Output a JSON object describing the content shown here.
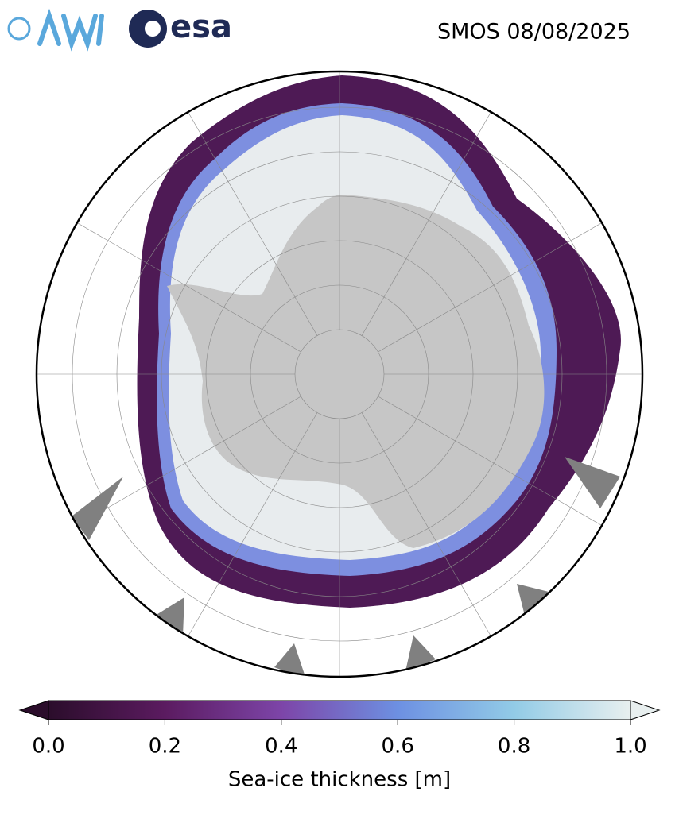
{
  "header": {
    "title": "SMOS 08/08/2025",
    "logos": [
      "esa"
    ]
  },
  "colorbar": {
    "label": "Sea-ice thickness [m]",
    "lim": [
      0,
      1
    ],
    "ticks": [
      {
        "value": 0,
        "label": "0.0"
      },
      0.2,
      0.4,
      0.6,
      0.8,
      {
        "value": 1,
        "label": "1.0"
      }
    ],
    "colors": [
      "#2b0d2b",
      "#5b1b60",
      "#7d45a8",
      "#6d90e2",
      "#92cbe6",
      "#e8efef"
    ],
    "extend": "both"
  }
}
